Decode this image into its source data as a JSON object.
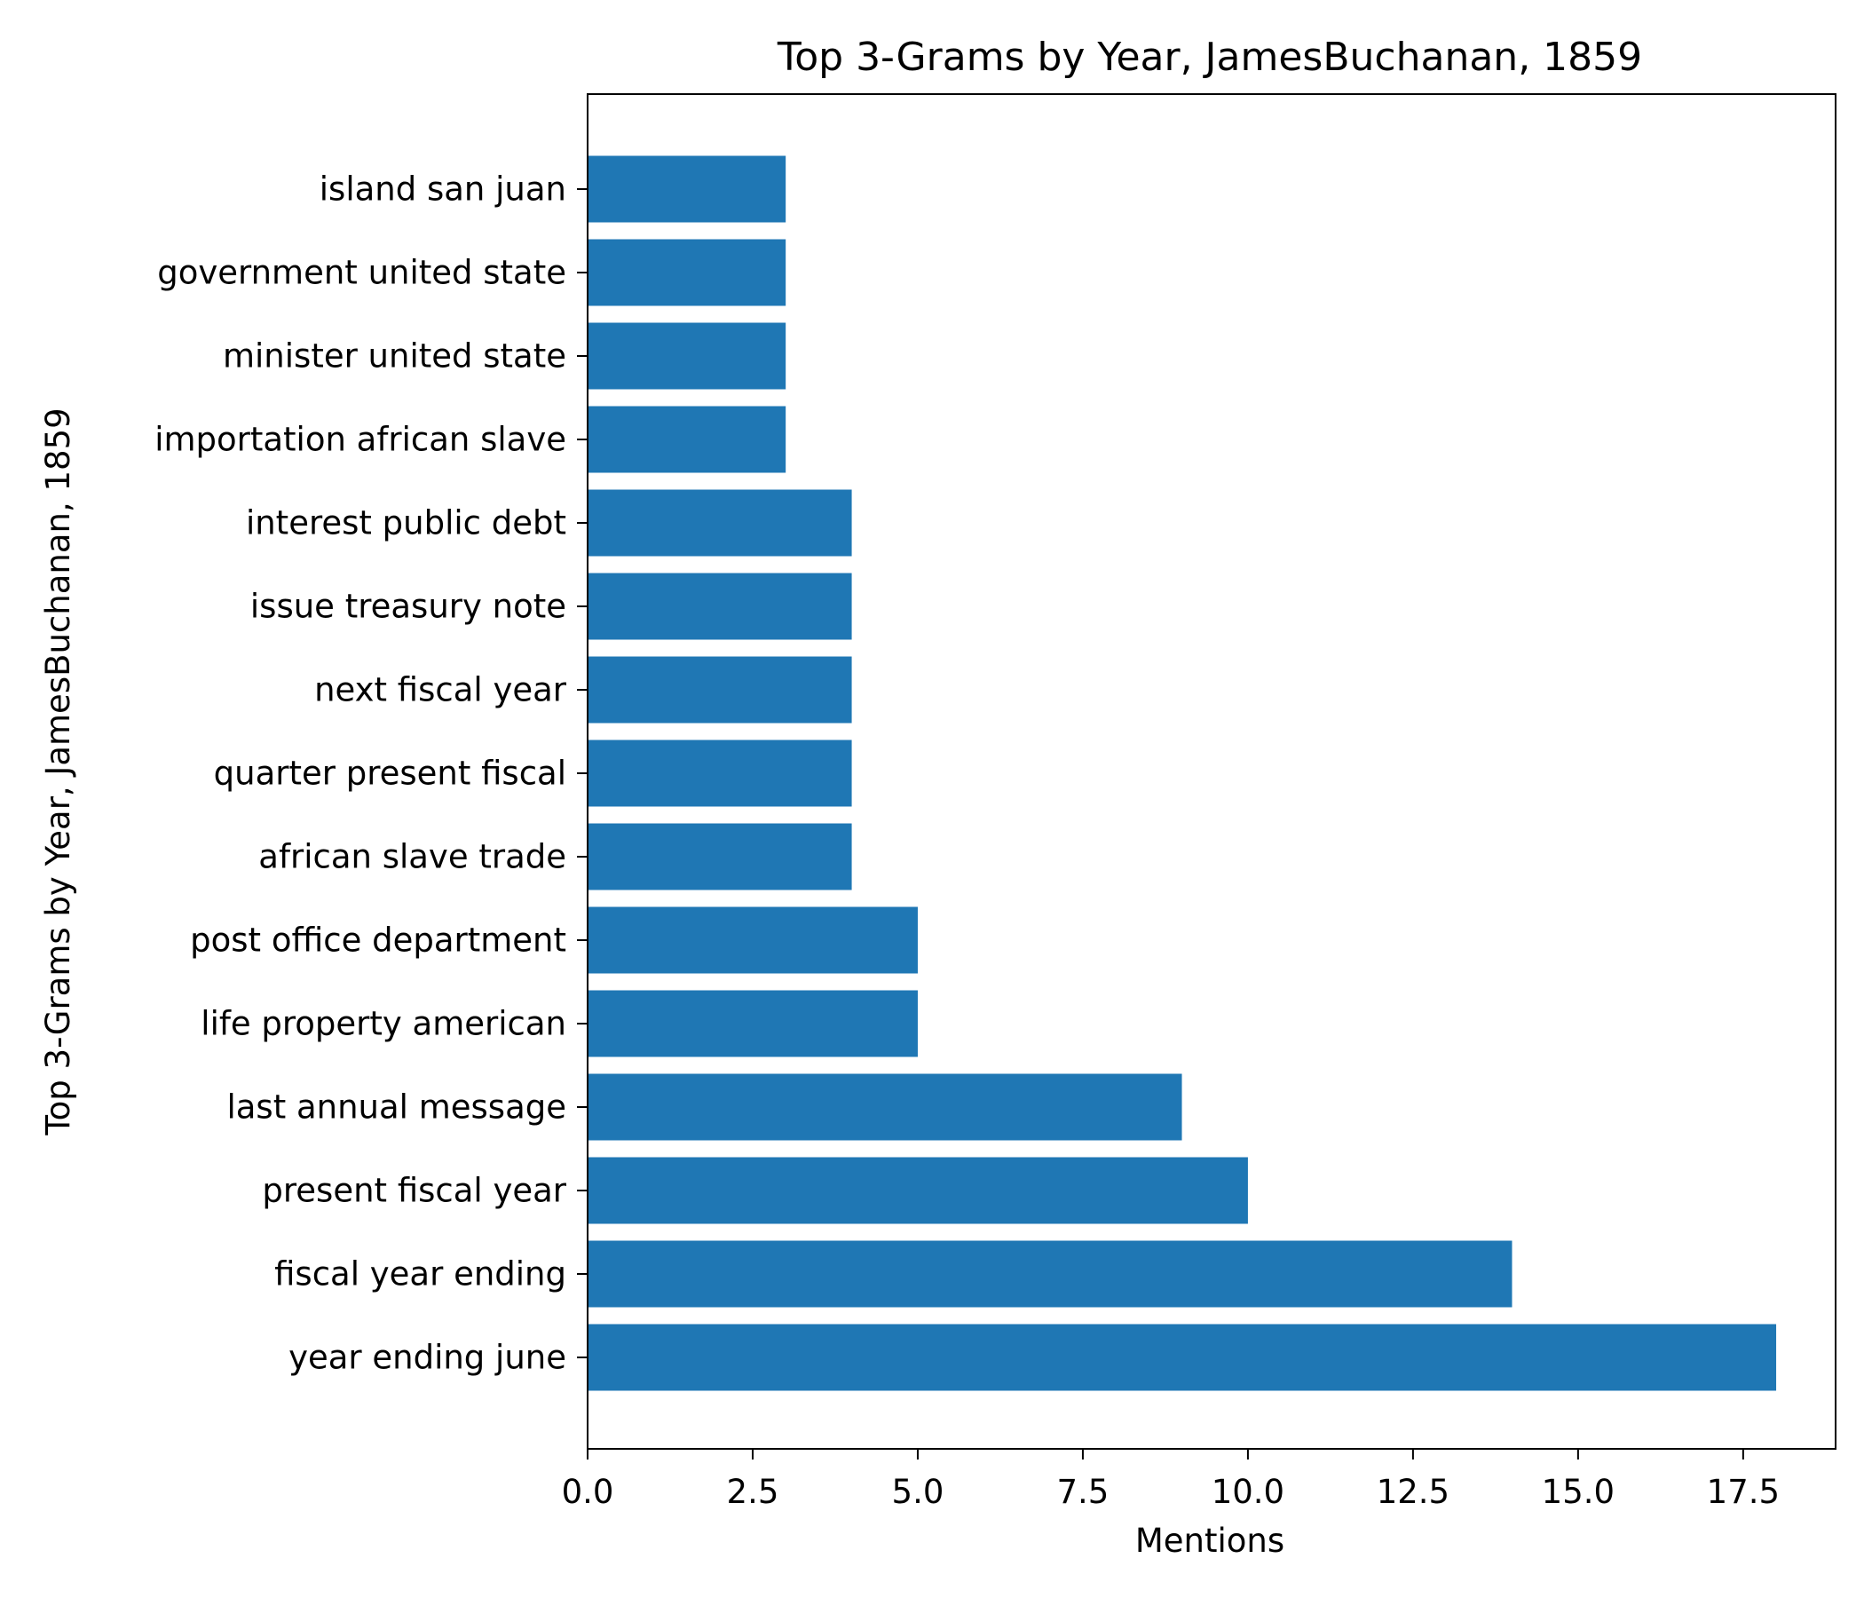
{
  "chart_data": {
    "type": "bar",
    "orientation": "horizontal",
    "title": "Top 3-Grams by Year, JamesBuchanan, 1859",
    "xlabel": "Mentions",
    "ylabel": "Top 3-Grams by Year, JamesBuchanan, 1859",
    "categories": [
      "year ending june",
      "fiscal year ending",
      "present fiscal year",
      "last annual message",
      "life property american",
      "post office department",
      "african slave trade",
      "quarter present fiscal",
      "next fiscal year",
      "issue treasury note",
      "interest public debt",
      "importation african slave",
      "minister united state",
      "government united state",
      "island san juan"
    ],
    "values": [
      18,
      14,
      10,
      9,
      5,
      5,
      4,
      4,
      4,
      4,
      4,
      3,
      3,
      3,
      3
    ],
    "xlim": [
      0,
      18.9
    ],
    "xticks": [
      "0.0",
      "2.5",
      "5.0",
      "7.5",
      "10.0",
      "12.5",
      "15.0",
      "17.5"
    ],
    "xtick_values": [
      0,
      2.5,
      5,
      7.5,
      10,
      12.5,
      15,
      17.5
    ],
    "grid": false,
    "bar_color": "#1f77b4"
  }
}
